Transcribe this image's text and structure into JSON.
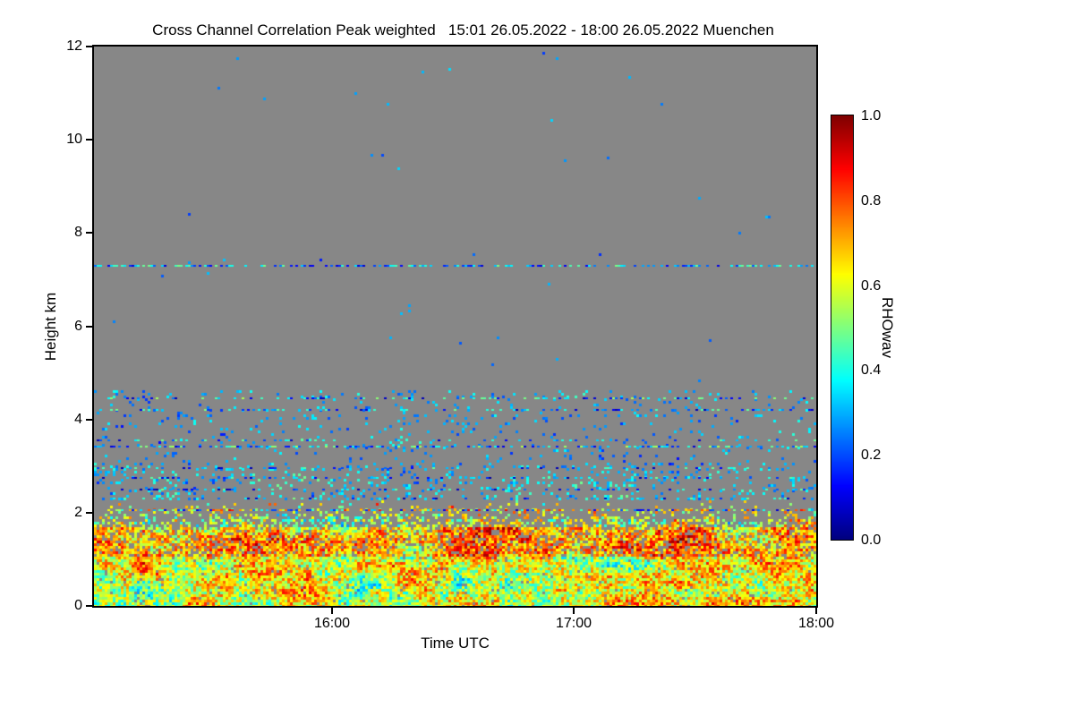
{
  "chart_data": {
    "type": "heatmap",
    "title": "Cross Channel Correlation Peak weighted   15:01 26.05.2022 - 18:00 26.05.2022 Muenchen",
    "quantity": "Cross Channel Correlation Peak weighted",
    "time_start": "15:01 26.05.2022",
    "time_end": "18:00 26.05.2022",
    "station": "Muenchen",
    "xlabel": "Time UTC",
    "ylabel": "Height km",
    "x_axis": {
      "start_minutes": 901,
      "end_minutes": 1080,
      "ticks": [
        {
          "minutes": 960,
          "label": "16:00"
        },
        {
          "minutes": 1020,
          "label": "17:00"
        },
        {
          "minutes": 1080,
          "label": "18:00"
        }
      ]
    },
    "y_axis": {
      "min_km": 0,
      "max_km": 12,
      "ticks": [
        {
          "km": 0,
          "label": "0"
        },
        {
          "km": 2,
          "label": "2"
        },
        {
          "km": 4,
          "label": "4"
        },
        {
          "km": 6,
          "label": "6"
        },
        {
          "km": 8,
          "label": "8"
        },
        {
          "km": 10,
          "label": "10"
        },
        {
          "km": 12,
          "label": "12"
        }
      ]
    },
    "colorbar": {
      "label": "RHOwav",
      "min": 0.0,
      "max": 1.0,
      "colormap": "jet",
      "ticks": [
        {
          "value": 1.0,
          "label": "1.0"
        },
        {
          "value": 0.8,
          "label": "0.8"
        },
        {
          "value": 0.6,
          "label": "0.6"
        },
        {
          "value": 0.4,
          "label": "0.4"
        },
        {
          "value": 0.2,
          "label": "0.2"
        },
        {
          "value": 0.0,
          "label": "0.0"
        }
      ]
    },
    "no_data_color": "#878787",
    "field": {
      "seed": 7,
      "bands": [
        {
          "name": "surface-layer",
          "y_km": [
            0.0,
            1.05
          ],
          "density": 0.97,
          "value_range": [
            0.12,
            1.0
          ]
        },
        {
          "name": "mixed-layer-top",
          "y_km": [
            1.05,
            1.7
          ],
          "density": 0.82,
          "value_range": [
            0.18,
            1.0
          ],
          "bias": 0.08
        },
        {
          "name": "entrainment-zone",
          "y_km": [
            1.7,
            2.25
          ],
          "density": 0.5,
          "value_range": [
            0.08,
            1.0
          ],
          "fade": true
        },
        {
          "name": "sparse-2-3km",
          "y_km": [
            2.25,
            3.1
          ],
          "density": 0.09,
          "value_range": [
            0.03,
            0.55
          ],
          "clump": true
        },
        {
          "name": "sparse-3-4.6km",
          "y_km": [
            3.1,
            4.6
          ],
          "density": 0.04,
          "value_range": [
            0.03,
            0.5
          ],
          "clump": true
        },
        {
          "name": "free-troposphere",
          "y_km": [
            4.6,
            12.0
          ],
          "density": 0.0012,
          "value_range": [
            0.05,
            0.45
          ]
        }
      ],
      "layer_lines": [
        {
          "km": 2.05,
          "density": 0.5,
          "value_range": [
            0.05,
            0.9
          ]
        },
        {
          "km": 2.3,
          "density": 0.22,
          "value_range": [
            0.03,
            0.5
          ]
        },
        {
          "km": 2.5,
          "density": 0.3,
          "value_range": [
            0.03,
            0.5
          ]
        },
        {
          "km": 2.75,
          "density": 0.25,
          "value_range": [
            0.03,
            0.5
          ]
        },
        {
          "km": 2.95,
          "density": 0.18,
          "value_range": [
            0.03,
            0.5
          ]
        },
        {
          "km": 3.42,
          "density": 0.45,
          "value_range": [
            0.08,
            0.55
          ]
        },
        {
          "km": 3.55,
          "density": 0.2,
          "value_range": [
            0.05,
            0.5
          ]
        },
        {
          "km": 4.2,
          "density": 0.3,
          "value_range": [
            0.05,
            0.5
          ]
        },
        {
          "km": 4.45,
          "density": 0.28,
          "value_range": [
            0.05,
            0.55
          ]
        },
        {
          "km": 7.3,
          "density": 0.5,
          "value_range": [
            0.08,
            0.5
          ]
        }
      ]
    }
  }
}
